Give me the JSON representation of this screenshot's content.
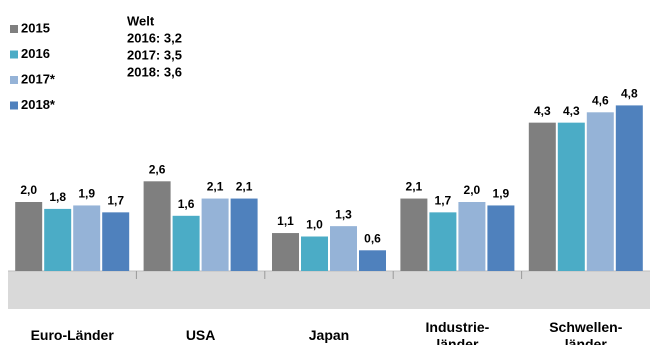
{
  "chart_data": {
    "type": "bar",
    "annotation": [
      "Welt",
      "2016: 3,2",
      "2017: 3,5",
      "2018: 3,6"
    ],
    "categories": [
      "Euro-Länder",
      "USA",
      "Japan",
      "Industrie-\nländer",
      "Schwellen-\nländer"
    ],
    "series": [
      {
        "name": "2015",
        "color": "#7f7f7f",
        "values": [
          2.0,
          2.6,
          1.1,
          2.1,
          4.3
        ],
        "value_labels": [
          "2,0",
          "2,6",
          "1,1",
          "2,1",
          "4,3"
        ]
      },
      {
        "name": "2016",
        "color": "#4bacc6",
        "values": [
          1.8,
          1.6,
          1.0,
          1.7,
          4.3
        ],
        "value_labels": [
          "1,8",
          "1,6",
          "1,0",
          "1,7",
          "4,3"
        ]
      },
      {
        "name": "2017*",
        "color": "#95b3d7",
        "values": [
          1.9,
          2.1,
          1.3,
          2.0,
          4.6
        ],
        "value_labels": [
          "1,9",
          "2,1",
          "1,3",
          "2,0",
          "4,6"
        ]
      },
      {
        "name": "2018*",
        "color": "#4f81bd",
        "values": [
          1.7,
          2.1,
          0.6,
          1.9,
          4.8
        ],
        "value_labels": [
          "1,7",
          "2,1",
          "0,6",
          "1,9",
          "4,8"
        ]
      }
    ],
    "legend": "top-left"
  }
}
